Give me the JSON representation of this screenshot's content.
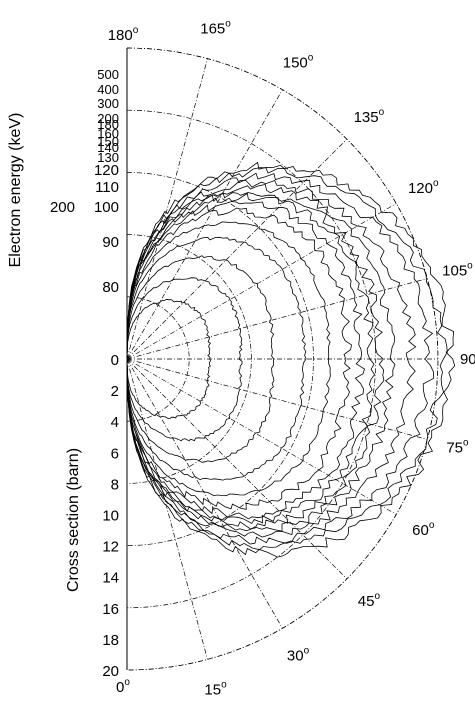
{
  "chart_data": {
    "type": "polar",
    "ylabel_top": "Electron energy (keV)",
    "ylabel_bottom": "Cross section (barn)",
    "angle_unit_symbol": "o",
    "angle_ticks_deg": [
      0,
      15,
      30,
      45,
      60,
      75,
      90,
      105,
      120,
      135,
      150,
      165,
      180
    ],
    "radial_ticks": [
      0,
      2,
      4,
      6,
      8,
      10,
      12,
      14,
      16,
      18,
      20
    ],
    "rlim": [
      0,
      20
    ],
    "energy_ticks_keV": [
      500,
      400,
      300,
      200,
      180,
      160,
      150,
      140,
      130,
      120,
      110,
      100,
      90,
      80
    ],
    "energy_label_extra": "200",
    "grid": true,
    "series": [
      {
        "energy_keV": 80,
        "r_max": 5.0,
        "r_90": 5.3
      },
      {
        "energy_keV": 90,
        "r_max": 6.9,
        "r_90": 7.3
      },
      {
        "energy_keV": 100,
        "r_max": 8.7,
        "r_90": 9.4
      },
      {
        "energy_keV": 110,
        "r_max": 10.3,
        "r_90": 11.4
      },
      {
        "energy_keV": 120,
        "r_max": 11.6,
        "r_90": 13.0
      },
      {
        "energy_keV": 130,
        "r_max": 12.6,
        "r_90": 14.2
      },
      {
        "energy_keV": 140,
        "r_max": 13.3,
        "r_90": 15.0
      },
      {
        "energy_keV": 150,
        "r_max": 13.8,
        "r_90": 15.7
      },
      {
        "energy_keV": 160,
        "r_max": 14.2,
        "r_90": 16.3
      },
      {
        "energy_keV": 180,
        "r_max": 14.6,
        "r_90": 17.0
      },
      {
        "energy_keV": 200,
        "r_max": 15.0,
        "r_90": 18.3
      },
      {
        "energy_keV": 300,
        "r_max": 15.5,
        "r_90": 19.5
      },
      {
        "energy_keV": 400,
        "r_max": 16.0,
        "r_90": 20.3
      },
      {
        "energy_keV": 500,
        "r_max": 16.5,
        "r_90": 20.8
      }
    ]
  }
}
